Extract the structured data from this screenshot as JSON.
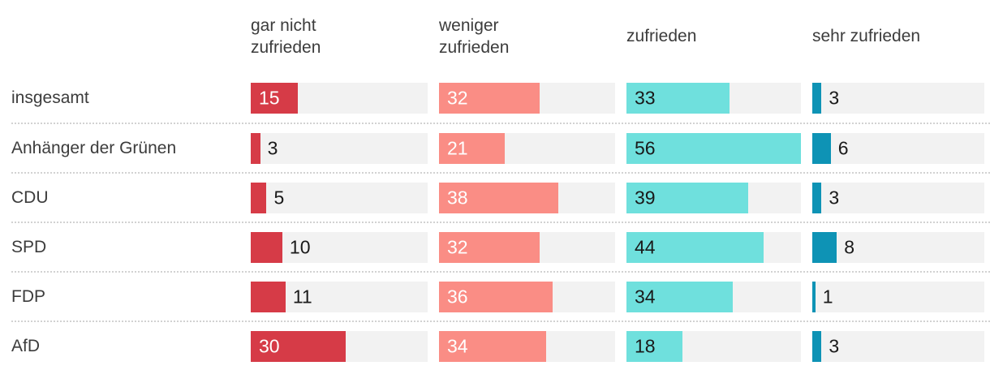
{
  "style": {
    "background": "#ffffff",
    "track_color": "#f2f2f2",
    "separator_color": "#d2d2d2",
    "header_text_color": "#3c3c3c",
    "row_label_color": "#3c3c3c",
    "value_outside_color": "#1a1a1a",
    "inside_label_min_value": 15
  },
  "columns": [
    {
      "id": "gar-nicht-zufrieden",
      "label_lines": [
        "gar nicht",
        "zufrieden"
      ],
      "color": "#d63b47",
      "inside_text_color": "#ffffff"
    },
    {
      "id": "weniger-zufrieden",
      "label_lines": [
        "weniger",
        "zufrieden"
      ],
      "color": "#fa8d85",
      "inside_text_color": "#ffffff"
    },
    {
      "id": "zufrieden",
      "label_lines": [
        "zufrieden"
      ],
      "color": "#6fe0dd",
      "inside_text_color": "#1a1a1a"
    },
    {
      "id": "sehr-zufrieden",
      "label_lines": [
        "sehr zufrieden"
      ],
      "color": "#0e93b5",
      "inside_text_color": "#1a1a1a"
    }
  ],
  "chart_data": {
    "type": "bar",
    "orientation": "horizontal",
    "legend_position": "top",
    "grid": false,
    "value_axis_max": 56,
    "categories": [
      "insgesamt",
      "Anhänger der Grünen",
      "CDU",
      "SPD",
      "FDP",
      "AfD"
    ],
    "series": [
      {
        "name": "gar nicht zufrieden",
        "color": "#d63b47",
        "values": [
          15,
          3,
          5,
          10,
          11,
          30
        ]
      },
      {
        "name": "weniger zufrieden",
        "color": "#fa8d85",
        "values": [
          32,
          21,
          38,
          32,
          36,
          34
        ]
      },
      {
        "name": "zufrieden",
        "color": "#6fe0dd",
        "values": [
          33,
          56,
          39,
          44,
          34,
          18
        ]
      },
      {
        "name": "sehr zufrieden",
        "color": "#0e93b5",
        "values": [
          3,
          6,
          3,
          8,
          1,
          3
        ]
      }
    ]
  }
}
